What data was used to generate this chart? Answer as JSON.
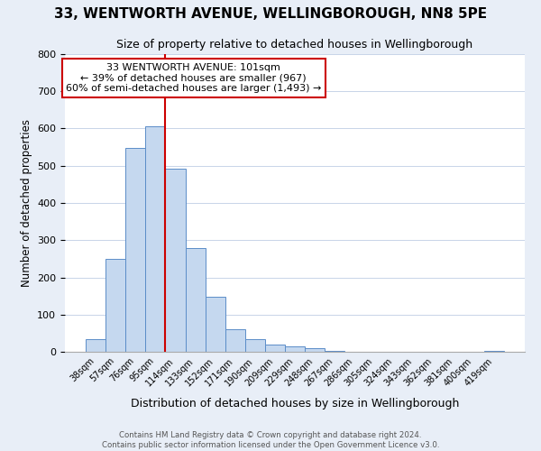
{
  "title": "33, WENTWORTH AVENUE, WELLINGBOROUGH, NN8 5PE",
  "subtitle": "Size of property relative to detached houses in Wellingborough",
  "xlabel": "Distribution of detached houses by size in Wellingborough",
  "ylabel": "Number of detached properties",
  "bar_labels": [
    "38sqm",
    "57sqm",
    "76sqm",
    "95sqm",
    "114sqm",
    "133sqm",
    "152sqm",
    "171sqm",
    "190sqm",
    "209sqm",
    "229sqm",
    "248sqm",
    "267sqm",
    "286sqm",
    "305sqm",
    "324sqm",
    "343sqm",
    "362sqm",
    "381sqm",
    "400sqm",
    "419sqm"
  ],
  "bar_values": [
    35,
    250,
    549,
    605,
    493,
    278,
    148,
    60,
    35,
    20,
    15,
    10,
    2,
    1,
    1,
    0,
    0,
    0,
    0,
    0,
    2
  ],
  "bar_color": "#c5d8ef",
  "bar_edge_color": "#5b8dc8",
  "vline_index": 4,
  "vline_color": "#cc0000",
  "annotation_line1": "33 WENTWORTH AVENUE: 101sqm",
  "annotation_line2": "← 39% of detached houses are smaller (967)",
  "annotation_line3": "60% of semi-detached houses are larger (1,493) →",
  "ylim": [
    0,
    800
  ],
  "yticks": [
    0,
    100,
    200,
    300,
    400,
    500,
    600,
    700,
    800
  ],
  "footer1": "Contains HM Land Registry data © Crown copyright and database right 2024.",
  "footer2": "Contains public sector information licensed under the Open Government Licence v3.0.",
  "background_color": "#e8eef7",
  "plot_bg_color": "#ffffff",
  "grid_color": "#c8d4e8"
}
